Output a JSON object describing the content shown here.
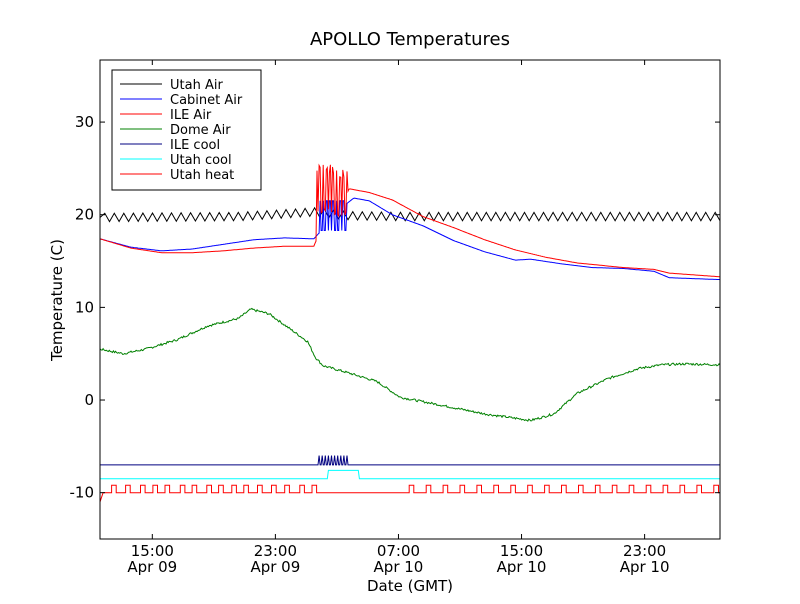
{
  "chart_data": {
    "type": "line",
    "title": "APOLLO Temperatures",
    "xlabel": "Date (GMT)",
    "ylabel": "Temperature (C)",
    "ylim": [
      -15,
      36.7
    ],
    "xlim_hours": [
      0,
      40.3
    ],
    "y_ticks": [
      {
        "value": 30,
        "label": "30"
      },
      {
        "value": 20,
        "label": "20"
      },
      {
        "value": 10,
        "label": "10"
      },
      {
        "value": 0,
        "label": "0"
      },
      {
        "value": -10,
        "label": "-10"
      }
    ],
    "x_ticks": [
      {
        "hours": 3.4,
        "time": "15:00",
        "date": "Apr 09"
      },
      {
        "hours": 11.4,
        "time": "23:00",
        "date": "Apr 09"
      },
      {
        "hours": 19.4,
        "time": "07:00",
        "date": "Apr 10"
      },
      {
        "hours": 27.4,
        "time": "15:00",
        "date": "Apr 10"
      },
      {
        "hours": 35.4,
        "time": "23:00",
        "date": "Apr 10"
      }
    ],
    "legend_position": "top-left",
    "series": [
      {
        "name": "Utah Air",
        "color": "#000000",
        "kind": "sawtooth",
        "base": 19.7,
        "amp": 0.45,
        "period": 0.62,
        "points": [
          [
            0,
            19.7
          ],
          [
            9,
            19.8
          ],
          [
            14,
            20.3
          ],
          [
            16,
            19.9
          ],
          [
            20,
            19.8
          ],
          [
            30,
            19.8
          ],
          [
            40.3,
            19.8
          ]
        ]
      },
      {
        "name": "Cabinet Air",
        "color": "#0000ff",
        "kind": "line",
        "points": [
          [
            0,
            17.4
          ],
          [
            2,
            16.5
          ],
          [
            4,
            16.1
          ],
          [
            6,
            16.3
          ],
          [
            8,
            16.8
          ],
          [
            10,
            17.3
          ],
          [
            12,
            17.5
          ],
          [
            13.9,
            17.4
          ],
          [
            14.5,
            18.5
          ],
          [
            15.5,
            20.5
          ],
          [
            16.5,
            21.8
          ],
          [
            17.5,
            21.5
          ],
          [
            19,
            20
          ],
          [
            21,
            18.8
          ],
          [
            23,
            17.2
          ],
          [
            25,
            16
          ],
          [
            27,
            15.1
          ],
          [
            28,
            15.2
          ],
          [
            30,
            14.7
          ],
          [
            32,
            14.3
          ],
          [
            34,
            14.2
          ],
          [
            36,
            13.9
          ],
          [
            37,
            13.2
          ],
          [
            40.3,
            13
          ]
        ]
      },
      {
        "name": "ILE Air",
        "color": "#ff0000",
        "kind": "line",
        "points": [
          [
            0,
            17.4
          ],
          [
            2,
            16.4
          ],
          [
            4,
            15.9
          ],
          [
            6,
            15.9
          ],
          [
            8,
            16.1
          ],
          [
            10,
            16.4
          ],
          [
            12,
            16.6
          ],
          [
            13.9,
            16.6
          ],
          [
            14.5,
            19
          ],
          [
            15.5,
            20.5
          ],
          [
            16.2,
            22.8
          ],
          [
            17.5,
            22.4
          ],
          [
            19,
            21.6
          ],
          [
            21,
            19.8
          ],
          [
            23,
            18.6
          ],
          [
            25,
            17.3
          ],
          [
            27,
            16.2
          ],
          [
            29,
            15.4
          ],
          [
            31,
            14.8
          ],
          [
            34,
            14.3
          ],
          [
            36,
            14.1
          ],
          [
            37,
            13.7
          ],
          [
            40.3,
            13.3
          ]
        ]
      },
      {
        "name": "Dome Air",
        "color": "#008000",
        "kind": "line",
        "noise": 0.12,
        "points": [
          [
            0,
            5.5
          ],
          [
            1.5,
            5
          ],
          [
            3,
            5.5
          ],
          [
            5,
            6.5
          ],
          [
            7,
            8
          ],
          [
            9,
            8.8
          ],
          [
            9.8,
            9.8
          ],
          [
            11,
            9.3
          ],
          [
            12.5,
            7.5
          ],
          [
            13.5,
            6.3
          ],
          [
            14,
            4.6
          ],
          [
            14.5,
            3.7
          ],
          [
            16,
            3
          ],
          [
            18,
            2
          ],
          [
            19.5,
            0.3
          ],
          [
            22,
            -0.5
          ],
          [
            25,
            -1.5
          ],
          [
            28,
            -2.2
          ],
          [
            29.5,
            -1.5
          ],
          [
            31,
            0.7
          ],
          [
            33,
            2.3
          ],
          [
            35,
            3.4
          ],
          [
            36.5,
            3.8
          ],
          [
            38,
            3.9
          ],
          [
            40.3,
            3.8
          ]
        ]
      },
      {
        "name": "ILE cool",
        "color": "#000080",
        "kind": "line",
        "points": [
          [
            0,
            -7
          ],
          [
            40.3,
            -7
          ]
        ]
      },
      {
        "name": "Utah cool",
        "color": "#00ffff",
        "kind": "line",
        "points": [
          [
            0,
            -8.5
          ],
          [
            40.3,
            -8.5
          ]
        ]
      },
      {
        "name": "Utah heat",
        "color": "#ff0000",
        "kind": "square",
        "low": -10,
        "high": -9.2
      }
    ]
  }
}
